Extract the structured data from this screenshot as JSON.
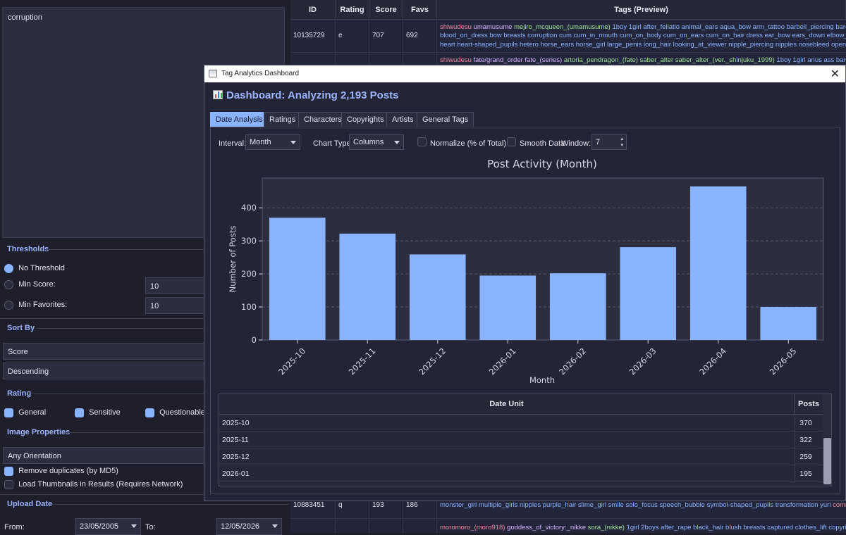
{
  "left": {
    "tag_query": "corruption",
    "thresholds": {
      "title": "Thresholds",
      "no_threshold": "No Threshold",
      "min_score_label": "Min Score:",
      "min_score_value": "10",
      "min_favs_label": "Min Favorites:",
      "min_favs_value": "10"
    },
    "sort_by": {
      "title": "Sort By",
      "field": "Score",
      "order": "Descending"
    },
    "rating": {
      "title": "Rating",
      "general": "General",
      "sensitive": "Sensitive",
      "questionable": "Questionable"
    },
    "image_properties": {
      "title": "Image Properties",
      "orientation": "Any Orientation",
      "remove_duplicates": "Remove duplicates (by MD5)",
      "load_thumbnails": "Load Thumbnails in Results (Requires Network)"
    },
    "upload_date": {
      "title": "Upload Date",
      "from_label": "From:",
      "from_value": "23/05/2005",
      "to_label": "To:",
      "to_value": "12/05/2026"
    }
  },
  "results": {
    "headers": {
      "id": "ID",
      "rating": "Rating",
      "score": "Score",
      "favs": "Favs",
      "tags": "Tags (Preview)"
    },
    "row1": {
      "id": "10135729",
      "rating": "e",
      "score": "707",
      "favs": "692",
      "line1_artist": "shiwudesu",
      "line1_copy": "umamusume",
      "line1_char": "mejiro_mcqueen_(umamusume)",
      "line1_gen": "1boy 1girl after_fellatio animal_ears aqua_bow arm_tattoo barbell_piercing bare",
      "line2": "blood_on_dress bow breasts corruption cum cum_in_mouth cum_on_body cum_on_ears cum_on_hair dress ear_bow ears_down elbow_gl",
      "line3": "heart heart-shaped_pupils hetero horse_ears horse_girl large_penis long_hair looking_at_viewer nipple_piercing nipples nosebleed open_m"
    },
    "row2": {
      "line1_artist": "shiwudesu",
      "line1_copy": "fate/grand_order fate_(series)",
      "line1_char": "artoria_pendragon_(fate) saber_alter saber_alter_(ver._shinjuku_1999)",
      "line1_gen": "1boy 1girl anus ass barefoot"
    },
    "row3": {
      "id": "10883451",
      "rating": "q",
      "score": "193",
      "favs": "186",
      "line1_gen": "monster_girl multiple_girls nipples purple_hair slime_girl smile solo_focus speech_bubble symbol-shaped_pupils transformation yuri",
      "line1_artist": "comm"
    },
    "row4": {
      "line1_artist": "moromoro_(moro918)",
      "line1_copy": "goddess_of_victory:_nikke",
      "line1_char": "sora_(nikke)",
      "line1_gen": "1girl 2boys after_rape black_hair blush breasts captured clothes_lift copyrigh"
    }
  },
  "dialog": {
    "window_title": "Tag Analytics Dashboard",
    "close_glyph": "✕",
    "heading": "Dashboard: Analyzing 2,193 Posts",
    "tabs": [
      "Date Analysis",
      "Ratings",
      "Characters",
      "Copyrights",
      "Artists",
      "General Tags"
    ],
    "controls": {
      "interval_label": "Interval:",
      "interval_value": "Month",
      "chart_type_label": "Chart Type:",
      "chart_type_value": "Columns",
      "normalize_label": "Normalize (% of Total)",
      "smooth_label": "Smooth Data",
      "window_label": "Window:",
      "window_value": "7"
    },
    "table": {
      "col1": "Date Unit",
      "col2": "Posts",
      "rows": [
        {
          "unit": "2025-10",
          "posts": "370"
        },
        {
          "unit": "2025-11",
          "posts": "322"
        },
        {
          "unit": "2025-12",
          "posts": "259"
        },
        {
          "unit": "2026-01",
          "posts": "195"
        }
      ]
    }
  },
  "chart_data": {
    "type": "bar",
    "title": "Post Activity (Month)",
    "xlabel": "Month",
    "ylabel": "Number of Posts",
    "categories": [
      "2025-10",
      "2025-11",
      "2025-12",
      "2026-01",
      "2026-02",
      "2026-03",
      "2026-04",
      "2026-05"
    ],
    "values": [
      370,
      322,
      259,
      195,
      202,
      281,
      465,
      100
    ],
    "ylim": [
      0,
      490
    ],
    "yticks": [
      0,
      100,
      200,
      300,
      400
    ],
    "grid": true,
    "bar_color": "#8ab4ff",
    "plot_bg": "#2c2e3f",
    "text_color": "#d6d8e4"
  }
}
